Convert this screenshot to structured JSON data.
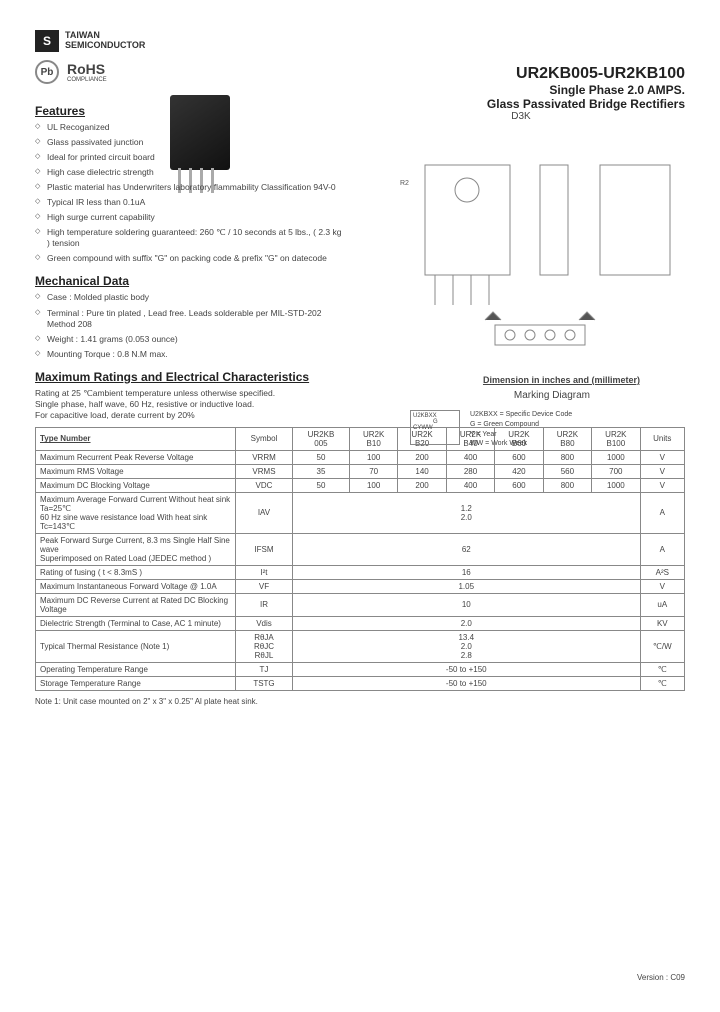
{
  "logo": {
    "symbol": "S",
    "name_line1": "TAIWAN",
    "name_line2": "SEMICONDUCTOR"
  },
  "compliance": {
    "pb": "Pb",
    "rohs": "RoHS",
    "rohs_sub": "COMPLIANCE"
  },
  "title": {
    "part_number": "UR2KB005-UR2KB100",
    "line1": "Single Phase 2.0 AMPS.",
    "line2": "Glass Passivated Bridge Rectifiers",
    "pkg": "D3K"
  },
  "drawing": {
    "dim_caption": "Dimension in inches and (millimeter)",
    "marking_caption": "Marking Diagram",
    "r2": "R2",
    "dims": [
      ".501(19.5)",
      ".565(14.1)",
      ".114(2.9)",
      ".129(3.3)",
      ".094(2.4)",
      ".106(2.6)",
      ".043(1.1)",
      ".122(3.1)",
      ".133(3.4)",
      ".460(11.7)",
      ".484(12.3)",
      ".030(2.0)",
      ".253(6.7)",
      ".287(7.3)",
      ".039(1.0)",
      ".055(1.4)",
      ".517(13.3)",
      ".543(13.8)",
      ".460(11.7)",
      ".484(12.3)",
      ".030(2.5) MIN",
      ".022(0.56)",
      ".045(1.1)",
      ".062(1.6)",
      ".070(1.8)",
      ".000(2.3)",
      ".020(.56)",
      ".025(.63)",
      ".015(0.4)",
      ".019(0.5)",
      ".138(3.51)",
      ".162(4.11)",
      ".138(3.51)",
      ".162(4.11)"
    ],
    "marking": {
      "code_label": "U2KBXX",
      "g": "G",
      "cyww": "CYWW",
      "legend1": "U2KBXX = Specific Device Code",
      "legend2": "G          = Green Compound",
      "legend3": "Y           = Year",
      "legend4": "WW       = Work Week"
    }
  },
  "features": {
    "title": "Features",
    "items": [
      "UL Recoganized",
      "Glass passivated junction",
      "Ideal for printed circuit board",
      "High case dielectric strength",
      "Plastic material has Underwriters laboratory flammability Classification 94V-0",
      "Typical IR less than 0.1uA",
      "High surge current capability",
      "High temperature soldering guaranteed: 260 ℃ / 10 seconds at 5 lbs., ( 2.3 kg ) tension",
      "Green compound with suffix \"G\" on packing code & prefix \"G\" on datecode"
    ]
  },
  "mechanical": {
    "title": "Mechanical Data",
    "items": [
      "Case : Molded plastic body",
      "Terminal : Pure tin plated , Lead free. Leads solderable per MIL-STD-202 Method 208",
      "Weight : 1.41 grams (0.053 ounce)",
      "Mounting Torque : 0.8 N.M max."
    ]
  },
  "ratings": {
    "title": "Maximum Ratings and Electrical Characteristics",
    "intro_line1": "Rating at 25 ℃ambient temperature unless otherwise specified.",
    "intro_line2": "Single phase, half wave, 60 Hz, resistive or inductive load.",
    "intro_line3": "For capacitive load, derate current by 20%",
    "headers": [
      "Type Number",
      "Symbol",
      "UR2KB\n005",
      "UR2K\nB10",
      "UR2K\nB20",
      "UR2K\nB40",
      "UR2K\nB60",
      "UR2K\nB80",
      "UR2K\nB100",
      "Units"
    ],
    "rows": [
      {
        "label": "Maximum Recurrent Peak Reverse Voltage",
        "symbol": "VRRM",
        "vals": [
          "50",
          "100",
          "200",
          "400",
          "600",
          "800",
          "1000"
        ],
        "unit": "V"
      },
      {
        "label": "Maximum RMS Voltage",
        "symbol": "VRMS",
        "vals": [
          "35",
          "70",
          "140",
          "280",
          "420",
          "560",
          "700"
        ],
        "unit": "V"
      },
      {
        "label": "Maximum DC Blocking Voltage",
        "symbol": "VDC",
        "vals": [
          "50",
          "100",
          "200",
          "400",
          "600",
          "800",
          "1000"
        ],
        "unit": "V"
      },
      {
        "label": "Maximum Average Forward Current  Without heat sink Ta=25℃\n60 Hz sine wave resistance load     With heat sink      Tc=143℃",
        "symbol": "IAV",
        "span": "1.2\n2.0",
        "unit": "A"
      },
      {
        "label": "Peak Forward Surge Current, 8.3 ms Single Half Sine wave\nSuperimposed on Rated Load (JEDEC method )",
        "symbol": "IFSM",
        "span": "62",
        "unit": "A"
      },
      {
        "label": "Rating of fusing ( t < 8.3mS )",
        "symbol": "I²t",
        "span": "16",
        "unit": "A²S"
      },
      {
        "label": "Maximum Instantaneous Forward Voltage  @ 1.0A",
        "symbol": "VF",
        "span": "1.05",
        "unit": "V"
      },
      {
        "label": "Maximum DC Reverse Current  at Rated DC Blocking Voltage",
        "symbol": "IR",
        "span": "10",
        "unit": "uA"
      },
      {
        "label": "Dielectric Strength  (Terminal to Case, AC 1 minute)",
        "symbol": "Vdis",
        "span": "2.0",
        "unit": "KV"
      },
      {
        "label": "Typical Thermal Resistance (Note 1)",
        "symbol": "RθJA\nRθJC\nRθJL",
        "span": "13.4\n2.0\n2.8",
        "unit": "℃/W"
      },
      {
        "label": "Operating Temperature Range",
        "symbol": "TJ",
        "span": "-50 to +150",
        "unit": "℃"
      },
      {
        "label": "Storage Temperature Range",
        "symbol": "TSTG",
        "span": "-50 to +150",
        "unit": "℃"
      }
    ],
    "note": "Note 1: Unit case mounted on 2\" x 3\" x 0.25\" Al plate heat sink."
  },
  "version": "Version : C09"
}
